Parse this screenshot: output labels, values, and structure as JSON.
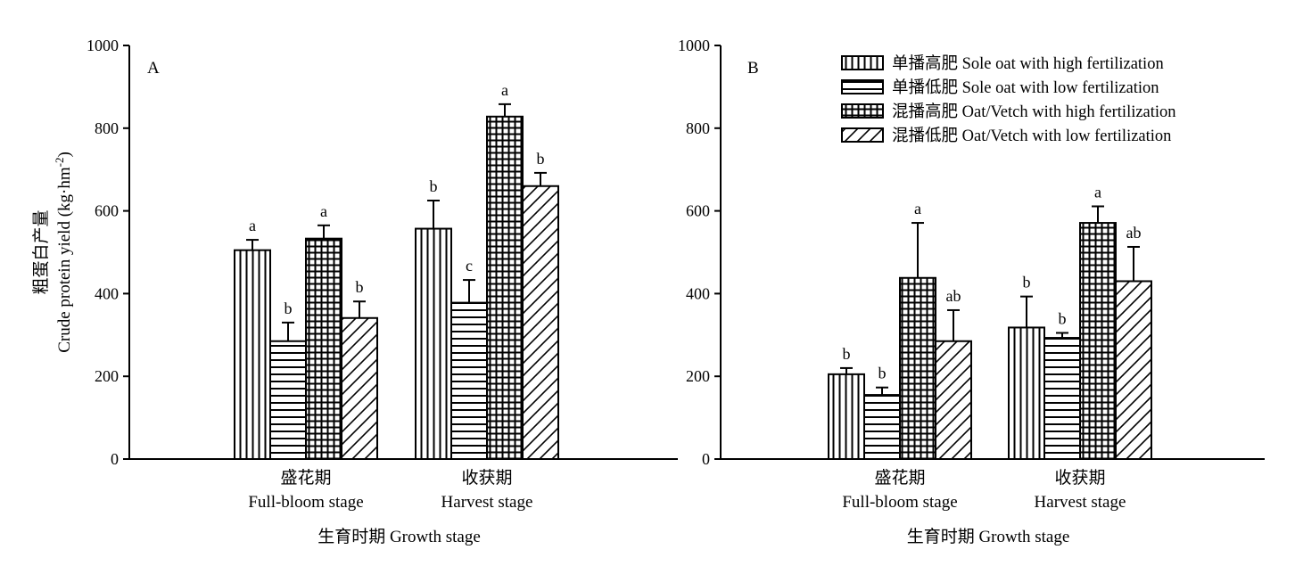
{
  "chart_data": [
    {
      "type": "bar",
      "panel_label": "A",
      "categories": [
        {
          "zh": "盛花期",
          "en": "Full-bloom stage"
        },
        {
          "zh": "收获期",
          "en": "Harvest stage"
        }
      ],
      "series": [
        {
          "name": "单播高肥 Sole oat with high fertilization",
          "values": [
            505,
            557
          ],
          "errors": [
            25,
            68
          ],
          "sig": [
            "a",
            "b"
          ]
        },
        {
          "name": "单播低肥 Sole oat with low fertilization",
          "values": [
            285,
            378
          ],
          "errors": [
            45,
            55
          ],
          "sig": [
            "b",
            "c"
          ]
        },
        {
          "name": "混播高肥 Oat/Vetch with high fertilization",
          "values": [
            533,
            828
          ],
          "errors": [
            32,
            30
          ],
          "sig": [
            "a",
            "a"
          ]
        },
        {
          "name": "混播低肥 Oat/Vetch with low fertilization",
          "values": [
            341,
            660
          ],
          "errors": [
            40,
            32
          ],
          "sig": [
            "b",
            "b"
          ]
        }
      ],
      "ylabel_zh": "粗蛋白产量",
      "ylabel_en": "Crude protein yield (kg·hm",
      "ylabel_unit_sup": "-2",
      "ylabel_unit_close": ")",
      "xlabel": "生育时期 Growth stage",
      "ylim": [
        0,
        1000
      ],
      "yticks": [
        0,
        200,
        400,
        600,
        800,
        1000
      ]
    },
    {
      "type": "bar",
      "panel_label": "B",
      "categories": [
        {
          "zh": "盛花期",
          "en": "Full-bloom stage"
        },
        {
          "zh": "收获期",
          "en": "Harvest stage"
        }
      ],
      "series": [
        {
          "name": "单播高肥 Sole oat with high fertilization",
          "values": [
            205,
            318
          ],
          "errors": [
            15,
            75
          ],
          "sig": [
            "b",
            "b"
          ]
        },
        {
          "name": "单播低肥 Sole oat with low fertilization",
          "values": [
            155,
            293
          ],
          "errors": [
            18,
            12
          ],
          "sig": [
            "b",
            "b"
          ]
        },
        {
          "name": "混播高肥 Oat/Vetch with high fertilization",
          "values": [
            438,
            571
          ],
          "errors": [
            133,
            40
          ],
          "sig": [
            "a",
            "a"
          ]
        },
        {
          "name": "混播低肥 Oat/Vetch with low fertilization",
          "values": [
            285,
            430
          ],
          "errors": [
            75,
            83
          ],
          "sig": [
            "ab",
            "ab"
          ]
        }
      ],
      "xlabel": "生育时期 Growth stage",
      "ylim": [
        0,
        1000
      ],
      "yticks": [
        0,
        200,
        400,
        600,
        800,
        1000
      ]
    }
  ],
  "legend": {
    "placement": "top-right of panel B",
    "entries": [
      {
        "label": "单播高肥 Sole oat with high fertilization",
        "pattern": "vertical-lines"
      },
      {
        "label": "单播低肥 Sole oat with low fertilization",
        "pattern": "horizontal-lines"
      },
      {
        "label": "混播高肥 Oat/Vetch with high fertilization",
        "pattern": "grid"
      },
      {
        "label": "混播低肥 Oat/Vetch with low fertilization",
        "pattern": "diagonal-lines"
      }
    ]
  }
}
